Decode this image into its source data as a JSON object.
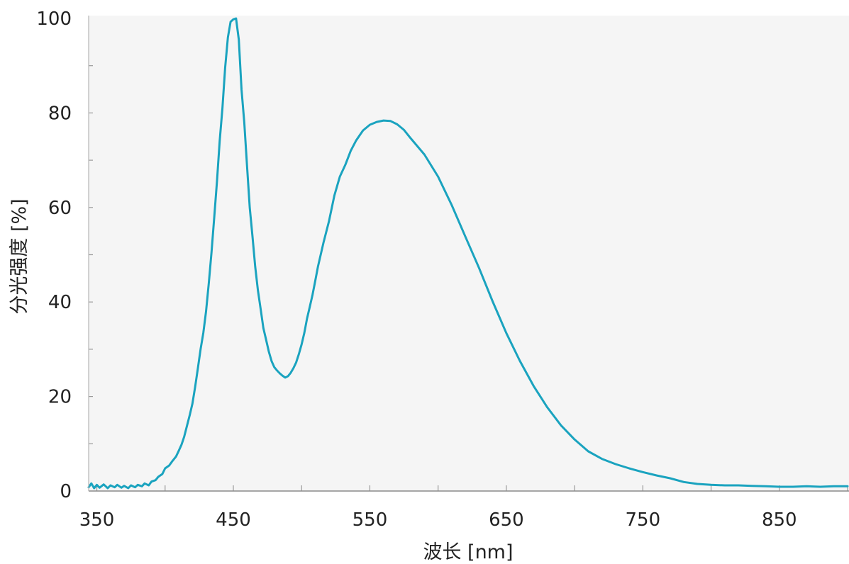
{
  "chart_data": {
    "type": "line",
    "xlabel": "波长 [nm]",
    "ylabel": "分光强度 [%]",
    "xlim": [
      344,
      900
    ],
    "ylim": [
      0,
      100
    ],
    "xticks": [
      350,
      450,
      550,
      650,
      750,
      850
    ],
    "yticks": [
      0,
      20,
      40,
      60,
      80,
      100
    ],
    "grid": false,
    "line_color": "#1aa3bf",
    "plot_background": "#f5f5f5",
    "axis_color": "#8a8a8a",
    "series": [
      {
        "x": [
          344,
          346,
          348,
          350,
          352,
          355,
          358,
          360,
          363,
          365,
          368,
          370,
          373,
          375,
          378,
          380,
          383,
          385,
          388,
          390,
          393,
          395,
          398,
          400,
          403,
          405,
          408,
          410,
          412,
          414,
          416,
          418,
          420,
          422,
          424,
          426,
          428,
          430,
          432,
          434,
          436,
          438,
          440,
          442,
          444,
          446,
          448,
          450,
          452,
          454,
          456,
          458,
          460,
          462,
          464,
          466,
          468,
          470,
          472,
          474,
          476,
          478,
          480,
          482,
          484,
          486,
          488,
          490,
          492,
          494,
          496,
          498,
          500,
          502,
          504,
          506,
          508,
          510,
          512,
          516,
          520,
          524,
          528,
          532,
          536,
          540,
          545,
          550,
          555,
          560,
          565,
          570,
          575,
          580,
          590,
          600,
          610,
          620,
          630,
          640,
          650,
          660,
          670,
          680,
          690,
          700,
          710,
          720,
          730,
          740,
          750,
          760,
          770,
          780,
          790,
          800,
          810,
          820,
          830,
          840,
          850,
          860,
          870,
          880,
          890,
          900
        ],
        "y": [
          0.8,
          1.6,
          0.6,
          1.3,
          0.7,
          1.4,
          0.6,
          1.2,
          0.8,
          1.3,
          0.7,
          1.1,
          0.6,
          1.2,
          0.8,
          1.3,
          1.0,
          1.6,
          1.2,
          2.0,
          2.3,
          3.0,
          3.6,
          4.8,
          5.4,
          6.2,
          7.3,
          8.5,
          9.8,
          11.5,
          13.8,
          16.0,
          18.5,
          22.0,
          26.0,
          30.0,
          33.5,
          38.0,
          44.0,
          50.5,
          58.0,
          65.5,
          74.0,
          81.0,
          89.5,
          96.0,
          99.3,
          99.8,
          100.0,
          95.5,
          85.0,
          78.0,
          69.0,
          60.0,
          54.0,
          47.5,
          42.5,
          38.5,
          34.5,
          32.0,
          29.5,
          27.5,
          26.2,
          25.5,
          24.9,
          24.4,
          24.0,
          24.3,
          25.0,
          26.0,
          27.2,
          29.0,
          31.0,
          33.5,
          36.5,
          39.0,
          41.5,
          44.5,
          47.5,
          52.5,
          57.0,
          62.5,
          66.5,
          69.0,
          72.0,
          74.2,
          76.3,
          77.5,
          78.1,
          78.4,
          78.3,
          77.6,
          76.4,
          74.6,
          71.2,
          66.5,
          60.5,
          53.8,
          47.2,
          40.1,
          33.4,
          27.5,
          22.2,
          17.7,
          13.9,
          10.9,
          8.4,
          6.8,
          5.7,
          4.8,
          4.0,
          3.3,
          2.7,
          1.9,
          1.5,
          1.3,
          1.2,
          1.2,
          1.1,
          1.0,
          0.9,
          0.9,
          1.0,
          0.9,
          1.0,
          1.0
        ]
      }
    ]
  }
}
